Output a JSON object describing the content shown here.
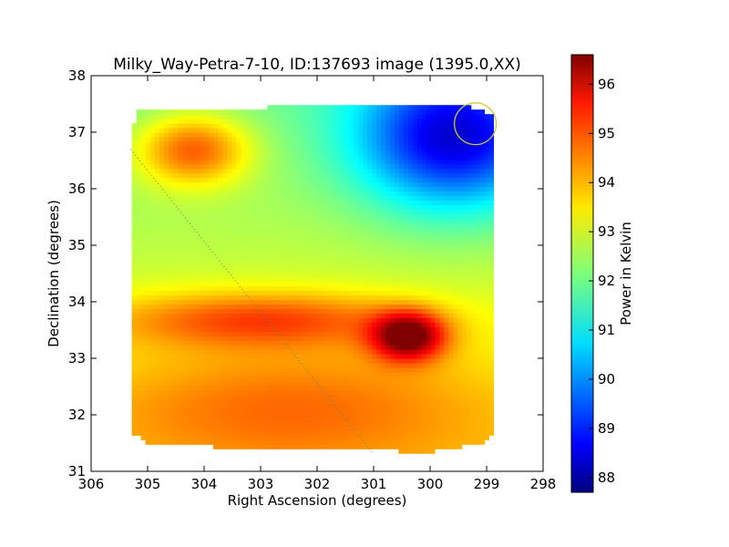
{
  "chart_data": {
    "type": "heatmap",
    "title": "Milky_Way-Petra-7-10, ID:137693 image (1395.0,XX)",
    "xlabel": "Right Ascension (degrees)",
    "ylabel": "Declination (degrees)",
    "xlim": [
      306,
      298
    ],
    "ylim": [
      31,
      38
    ],
    "x_ticks": [
      "306",
      "305",
      "304",
      "303",
      "302",
      "301",
      "300",
      "299",
      "298"
    ],
    "y_ticks": [
      "31",
      "32",
      "33",
      "34",
      "35",
      "36",
      "37",
      "38"
    ],
    "colorbar": {
      "label": "Power in Kelvin",
      "range": [
        87.7,
        96.6
      ],
      "ticks": [
        "88",
        "89",
        "90",
        "91",
        "92",
        "93",
        "94",
        "95",
        "96"
      ],
      "colormap": "jet"
    },
    "footprint_outline": [
      [
        305.2,
        37.4
      ],
      [
        299.4,
        37.5
      ],
      [
        298.9,
        37.3
      ],
      [
        298.85,
        31.7
      ],
      [
        299.1,
        31.5
      ],
      [
        300.0,
        31.35
      ],
      [
        303.0,
        31.4
      ],
      [
        305.0,
        31.5
      ],
      [
        305.3,
        31.7
      ],
      [
        305.25,
        34.6
      ],
      [
        305.3,
        36.8
      ]
    ],
    "background_level": 92.8,
    "features": [
      {
        "name": "warm region",
        "ra": 304.2,
        "dec": 36.7,
        "peak": 95.2,
        "sigma_ra": 0.7,
        "sigma_dec": 0.45
      },
      {
        "name": "warm band",
        "ra": 303.0,
        "dec": 33.7,
        "peak": 94.6,
        "sigma_ra": 1.9,
        "sigma_dec": 0.35
      },
      {
        "name": "hot spot",
        "ra": 300.4,
        "dec": 33.4,
        "peak": 96.4,
        "sigma_ra": 0.45,
        "sigma_dec": 0.3
      },
      {
        "name": "warm south",
        "ra": 302.5,
        "dec": 32.2,
        "peak": 94.0,
        "sigma_ra": 2.6,
        "sigma_dec": 0.8
      },
      {
        "name": "cold region",
        "ra": 299.6,
        "dec": 36.9,
        "peak": 89.0,
        "sigma_ra": 1.2,
        "sigma_dec": 0.9
      }
    ],
    "beam_circle": {
      "ra": 299.2,
      "dec": 37.15,
      "radius_deg": 0.37,
      "color": "#c8c832"
    },
    "diagonal_line": {
      "from": [
        305.3,
        36.7
      ],
      "to": [
        301.0,
        31.3
      ],
      "style": "dotted",
      "color": "#5a8a5a"
    }
  }
}
